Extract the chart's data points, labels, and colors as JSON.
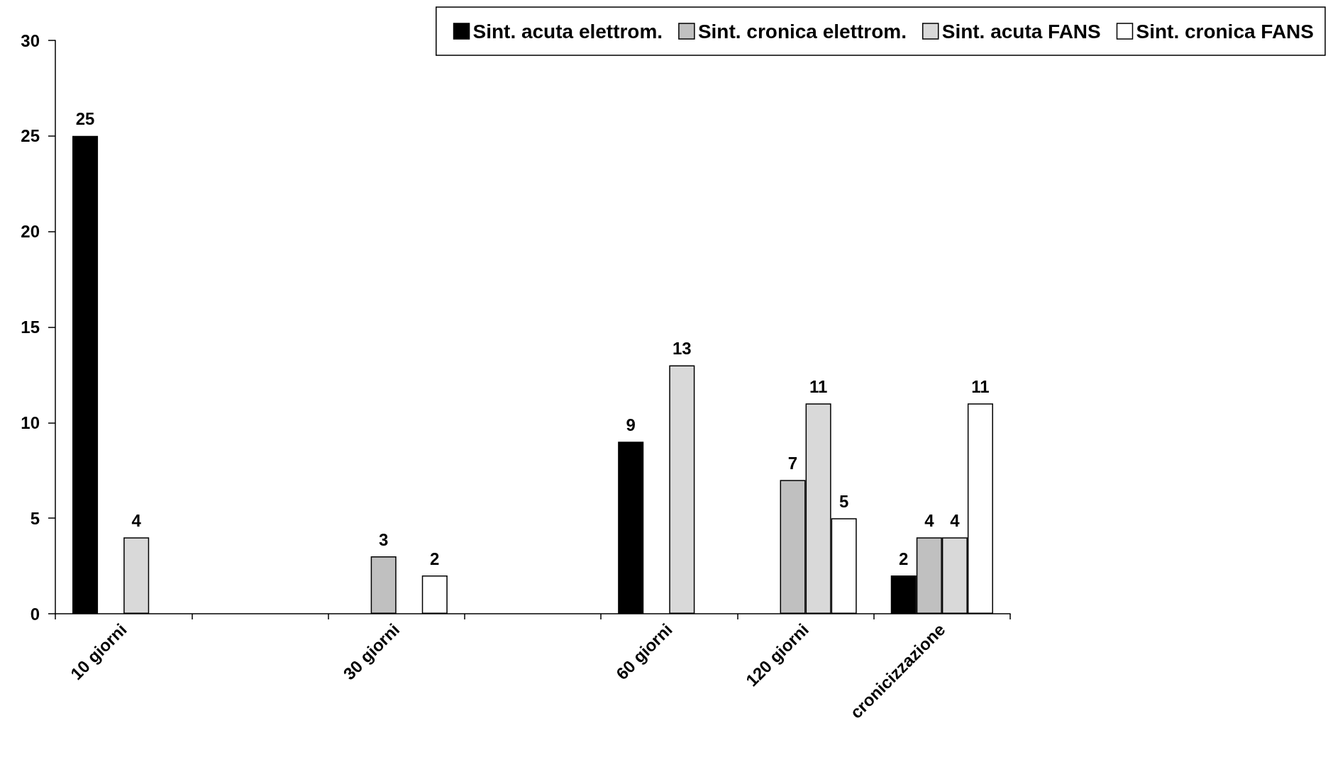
{
  "chart_data": {
    "type": "bar",
    "categories": [
      "10 giorni",
      null,
      "30 giorni",
      null,
      "60 giorni",
      "120 giorni",
      "cronicizzazione"
    ],
    "series": [
      {
        "name": "Sint. acuta elettrom.",
        "color": "#000000",
        "values": [
          25,
          null,
          null,
          null,
          9,
          null,
          2
        ]
      },
      {
        "name": "Sint. cronica elettrom.",
        "color": "#c0c0c0",
        "values": [
          null,
          null,
          3,
          null,
          null,
          7,
          4
        ]
      },
      {
        "name": "Sint. acuta FANS",
        "color": "#d9d9d9",
        "values": [
          4,
          null,
          null,
          null,
          13,
          11,
          4
        ]
      },
      {
        "name": "Sint. cronica FANS",
        "color": "#ffffff",
        "values": [
          null,
          null,
          2,
          null,
          null,
          5,
          11
        ]
      }
    ],
    "ylim": [
      0,
      30
    ],
    "yticks": [
      0,
      5,
      10,
      15,
      20,
      25,
      30
    ],
    "grid": false,
    "legend": "top right",
    "data_labels": true
  }
}
